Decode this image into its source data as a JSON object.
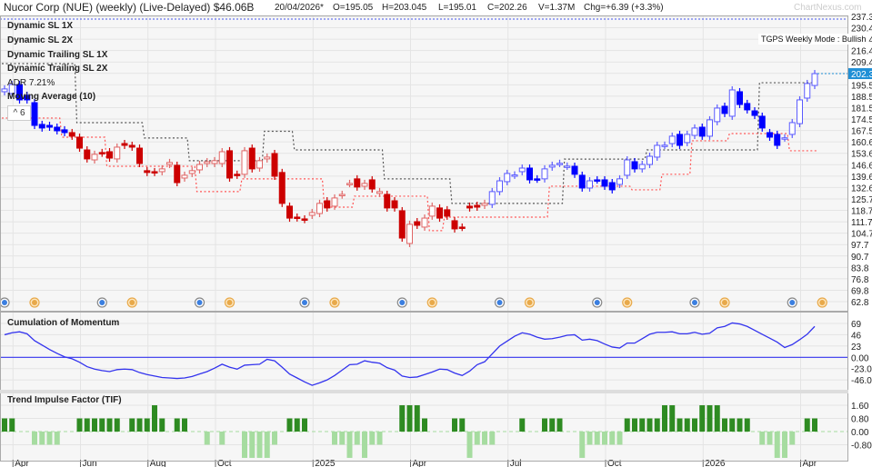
{
  "header": {
    "title": "Nucor Corp (NUE)  (weekly) (Live-Delayed) $46.06B",
    "date": "20/04/2026*",
    "open": "O=195.05",
    "high": "H=203.045",
    "low": "L=195.01",
    "close": "C=202.26",
    "volume": "V=1.37M",
    "change": "Chg=+6.39 (+3.3%)",
    "watermark": "ChartNexus.com"
  },
  "legend": {
    "items": [
      "Dynamic SL 1X",
      "Dynamic SL 2X",
      "Dynamic Trailing SL 1X",
      "Dynamic Trailing SL 2X",
      "ADR 7.21%",
      "Moving Average (10)"
    ],
    "collapse_label": "^ 6",
    "mode_label": "TGPS Weekly Mode : Bullish"
  },
  "colors": {
    "bull": "#0000ff",
    "bull_outline": "#5a5aff",
    "bear": "#cc0000",
    "bear_outline": "#e06666",
    "sl_black": "#555555",
    "sl_red": "#ff5555",
    "momentum": "#3333ee",
    "tif_pos": "#2e8b22",
    "tif_neg": "#a6dca0",
    "last_price": "#1f8fd6"
  },
  "chart_data": [
    {
      "type": "candlestick",
      "interval": "weekly",
      "last_date": "2026-04-20",
      "ylim": [
        62.8,
        237.3
      ],
      "y_ticks": [
        "237.3",
        "230.4",
        "223.4",
        "216.4",
        "209.4",
        "202.3",
        "195.5",
        "188.5",
        "181.5",
        "174.5",
        "167.5",
        "160.6",
        "153.6",
        "146.6",
        "139.6",
        "132.6",
        "125.7",
        "118.7",
        "111.7",
        "104.7",
        "97.7",
        "90.7",
        "83.8",
        "76.8",
        "69.8",
        "62.8"
      ],
      "last_price_label": "202.3",
      "grid": true,
      "candles_open_close": [
        [
          191.2,
          192.9
        ],
        [
          190.1,
          195.6
        ],
        [
          195.6,
          186.2
        ],
        [
          189.0,
          186.2
        ],
        [
          184.5,
          170.6
        ],
        [
          171.2,
          169.0
        ],
        [
          170.6,
          169.5
        ],
        [
          169.5,
          167.3
        ],
        [
          167.9,
          166.2
        ],
        [
          166.2,
          164.0
        ],
        [
          163.4,
          156.7
        ],
        [
          155.6,
          150.1
        ],
        [
          149.5,
          152.9
        ],
        [
          154.0,
          153.6
        ],
        [
          154.5,
          150.6
        ],
        [
          150.1,
          157.3
        ],
        [
          159.5,
          158.4
        ],
        [
          158.4,
          157.3
        ],
        [
          156.7,
          147.3
        ],
        [
          142.9,
          141.8
        ],
        [
          142.3,
          141.8
        ],
        [
          142.3,
          144.0
        ],
        [
          146.7,
          147.9
        ],
        [
          146.2,
          135.6
        ],
        [
          138.4,
          140.1
        ],
        [
          141.2,
          142.9
        ],
        [
          143.4,
          146.7
        ],
        [
          147.3,
          148.4
        ],
        [
          147.3,
          149.0
        ],
        [
          147.3,
          154.5
        ],
        [
          155.1,
          138.4
        ],
        [
          140.7,
          140.1
        ],
        [
          140.7,
          155.1
        ],
        [
          156.7,
          144.0
        ],
        [
          144.5,
          149.0
        ],
        [
          150.1,
          151.2
        ],
        [
          153.4,
          139.5
        ],
        [
          141.8,
          122.9
        ],
        [
          121.2,
          113.9
        ],
        [
          114.5,
          114.0
        ],
        [
          113.4,
          113.0
        ],
        [
          115.6,
          117.3
        ],
        [
          116.7,
          122.9
        ],
        [
          124.5,
          120.1
        ],
        [
          121.2,
          126.2
        ],
        [
          128.0,
          128.4
        ],
        [
          135.0,
          135.1
        ],
        [
          137.9,
          132.9
        ],
        [
          133.4,
          135.1
        ],
        [
          137.3,
          131.7
        ],
        [
          129.0,
          130.1
        ],
        [
          128.4,
          120.1
        ],
        [
          124.5,
          120.1
        ],
        [
          118.4,
          101.7
        ],
        [
          98.4,
          110.1
        ],
        [
          111.7,
          109.5
        ],
        [
          108.4,
          113.9
        ],
        [
          115.1,
          121.2
        ],
        [
          120.1,
          113.9
        ],
        [
          119.0,
          115.1
        ],
        [
          112.3,
          107.3
        ],
        [
          108.4,
          108.2
        ],
        [
          121.2,
          120.1
        ],
        [
          121.7,
          120.6
        ],
        [
          121.7,
          122.9
        ],
        [
          122.3,
          130.1
        ],
        [
          130.1,
          136.7
        ],
        [
          136.2,
          141.2
        ],
        [
          140.1,
          140.3
        ],
        [
          142.3,
          144.5
        ],
        [
          144.5,
          137.3
        ],
        [
          137.9,
          137.7
        ],
        [
          137.9,
          144.0
        ],
        [
          145.1,
          146.2
        ],
        [
          147.3,
          147.4
        ],
        [
          145.6,
          145.7
        ],
        [
          145.6,
          140.7
        ],
        [
          140.1,
          132.3
        ],
        [
          132.3,
          136.7
        ],
        [
          137.3,
          137.2
        ],
        [
          137.3,
          133.4
        ],
        [
          135.6,
          131.2
        ],
        [
          134.5,
          137.9
        ],
        [
          140.1,
          149.5
        ],
        [
          148.4,
          144.0
        ],
        [
          144.0,
          146.7
        ],
        [
          146.7,
          151.7
        ],
        [
          151.2,
          158.4
        ],
        [
          158.4,
          158.5
        ],
        [
          159.5,
          164.0
        ],
        [
          165.1,
          158.4
        ],
        [
          160.1,
          165.1
        ],
        [
          164.5,
          169.0
        ],
        [
          169.5,
          164.0
        ],
        [
          164.0,
          174.0
        ],
        [
          172.9,
          181.2
        ],
        [
          182.3,
          177.9
        ],
        [
          176.2,
          192.3
        ],
        [
          191.2,
          183.4
        ],
        [
          184.0,
          180.1
        ],
        [
          179.5,
          176.7
        ],
        [
          176.2,
          169.0
        ],
        [
          166.2,
          163.4
        ],
        [
          165.1,
          158.4
        ],
        [
          162.9,
          163.0
        ],
        [
          165.1,
          172.3
        ],
        [
          171.7,
          186.2
        ],
        [
          187.3,
          196.2
        ],
        [
          195.05,
          202.26
        ]
      ],
      "trend_segments": [
        {
          "mode": "bull",
          "count": 9
        },
        {
          "mode": "bear",
          "count": 56
        },
        {
          "mode": "bull",
          "count": 44
        }
      ],
      "stop_black_steps": [
        [
          208.4,
          0,
          9
        ],
        [
          172.3,
          10,
          18
        ],
        [
          162.9,
          19,
          24
        ],
        [
          149.0,
          25,
          34
        ],
        [
          167.0,
          35,
          38
        ],
        [
          155.6,
          39,
          50
        ],
        [
          137.9,
          51,
          59
        ],
        [
          122.9,
          60,
          74
        ],
        [
          150.0,
          75,
          85
        ],
        [
          155.6,
          86,
          100
        ],
        [
          196.7,
          101,
          108
        ]
      ],
      "stop_red_steps": [
        [
          175.1,
          0,
          7
        ],
        [
          163.4,
          8,
          13
        ],
        [
          145.6,
          14,
          25
        ],
        [
          130.1,
          26,
          31
        ],
        [
          137.9,
          32,
          42
        ],
        [
          120.6,
          43,
          46
        ],
        [
          127.3,
          47,
          56
        ],
        [
          106.2,
          57,
          58
        ],
        [
          114.5,
          59,
          72
        ],
        [
          133.4,
          73,
          83
        ],
        [
          131.2,
          84,
          87
        ],
        [
          140.7,
          88,
          91
        ],
        [
          161.2,
          92,
          96
        ],
        [
          165.6,
          97,
          104
        ],
        [
          155.1,
          105,
          108
        ]
      ],
      "events": [
        {
          "type": "dividend",
          "date": "2024-03-25"
        },
        {
          "type": "earnings",
          "date": "2024-04-22"
        },
        {
          "type": "dividend",
          "date": "2024-06-24"
        },
        {
          "type": "earnings",
          "date": "2024-07-22"
        },
        {
          "type": "dividend",
          "date": "2024-09-23"
        },
        {
          "type": "earnings",
          "date": "2024-10-21"
        },
        {
          "type": "dividend",
          "date": "2024-12-30"
        },
        {
          "type": "earnings",
          "date": "2025-01-27"
        },
        {
          "type": "dividend",
          "date": "2025-03-31"
        },
        {
          "type": "earnings",
          "date": "2025-04-28"
        },
        {
          "type": "dividend",
          "date": "2025-06-30"
        },
        {
          "type": "earnings",
          "date": "2025-07-28"
        },
        {
          "type": "dividend",
          "date": "2025-09-29"
        },
        {
          "type": "earnings",
          "date": "2025-10-27"
        },
        {
          "type": "dividend",
          "date": "2025-12-29"
        },
        {
          "type": "earnings",
          "date": "2026-01-26"
        },
        {
          "type": "dividend",
          "date": "2026-03-30"
        },
        {
          "type": "earnings",
          "date": "2026-04-27"
        }
      ]
    },
    {
      "type": "line",
      "title": "Cumulation of Momentum",
      "y_ticks": [
        "69",
        "46",
        "23",
        "0.00",
        "-23.00",
        "-46.01"
      ],
      "y_tick_values": [
        69,
        46,
        23,
        0,
        -23,
        -46.01
      ],
      "values": [
        46,
        50,
        52,
        48,
        34,
        25,
        16,
        8,
        1,
        -3,
        -10,
        -19,
        -24,
        -27,
        -29,
        -25,
        -24,
        -25,
        -31,
        -35,
        -38,
        -41,
        -42,
        -43,
        -42,
        -39,
        -34,
        -29,
        -22,
        -14,
        -20,
        -24,
        -16,
        -15,
        -14,
        -4,
        -7,
        -20,
        -34,
        -42,
        -50,
        -57,
        -52,
        -46,
        -37,
        -26,
        -15,
        -14,
        -7,
        -10,
        -12,
        -21,
        -26,
        -38,
        -41,
        -40,
        -35,
        -30,
        -24,
        -25,
        -32,
        -37,
        -28,
        -15,
        -9,
        7,
        23,
        33,
        43,
        50,
        47,
        41,
        37,
        38,
        41,
        45,
        46,
        35,
        37,
        34,
        27,
        21,
        19,
        29,
        29,
        38,
        47,
        51,
        51,
        52,
        48,
        48,
        51,
        47,
        49,
        60,
        63,
        70,
        68,
        63,
        55,
        47,
        39,
        31,
        20,
        26,
        36,
        47,
        63
      ]
    },
    {
      "type": "bar",
      "title": "Trend Impulse Factor (TIF)",
      "y_ticks": [
        "1.60",
        "0.80",
        "0.00",
        "-0.80"
      ],
      "y_tick_values": [
        1.6,
        0.8,
        0,
        -0.8
      ],
      "values": [
        0.8,
        0.8,
        0,
        0,
        -0.8,
        -0.8,
        -0.8,
        -0.8,
        0,
        0,
        0.8,
        0.8,
        0.8,
        0.8,
        0.8,
        0.8,
        0,
        0.8,
        0.8,
        0.8,
        1.6,
        0.8,
        0,
        0.8,
        0.8,
        0,
        0,
        -0.8,
        0,
        -0.8,
        0,
        0,
        -1.6,
        -1.6,
        -1.6,
        -1.6,
        -0.8,
        0,
        0.8,
        0.8,
        0.8,
        0,
        0,
        0,
        -0.8,
        -0.8,
        -1.6,
        -0.8,
        -1.6,
        -0.8,
        -0.8,
        0,
        0,
        1.6,
        1.6,
        1.6,
        0.8,
        0,
        0,
        0,
        0.8,
        0.8,
        -1.6,
        -0.8,
        -0.8,
        -0.8,
        0,
        0,
        0,
        0.8,
        0,
        0,
        0.8,
        0.8,
        0.8,
        0,
        0,
        -1.6,
        -0.8,
        -0.8,
        -0.8,
        -0.8,
        -0.8,
        0.8,
        0.8,
        0.8,
        0.8,
        0.8,
        1.6,
        1.6,
        0.8,
        0.8,
        0.8,
        1.6,
        1.6,
        1.6,
        0.8,
        0.8,
        0.8,
        0.8,
        0,
        -0.8,
        -0.8,
        -1.6,
        -1.6,
        -0.8,
        0,
        0.8,
        0.8
      ]
    }
  ],
  "x_axis": {
    "ticks": [
      {
        "label": "Apr",
        "date": "2024-04-01"
      },
      {
        "label": "Jun",
        "date": "2024-06-03"
      },
      {
        "label": "Aug",
        "date": "2024-08-05"
      },
      {
        "label": "Oct",
        "date": "2024-10-07"
      },
      {
        "label": "2025",
        "date": "2025-01-06"
      },
      {
        "label": "Apr",
        "date": "2025-04-07"
      },
      {
        "label": "Jul",
        "date": "2025-07-07"
      },
      {
        "label": "Oct",
        "date": "2025-10-06"
      },
      {
        "label": "2026",
        "date": "2026-01-05"
      },
      {
        "label": "Apr",
        "date": "2026-04-06"
      }
    ]
  }
}
